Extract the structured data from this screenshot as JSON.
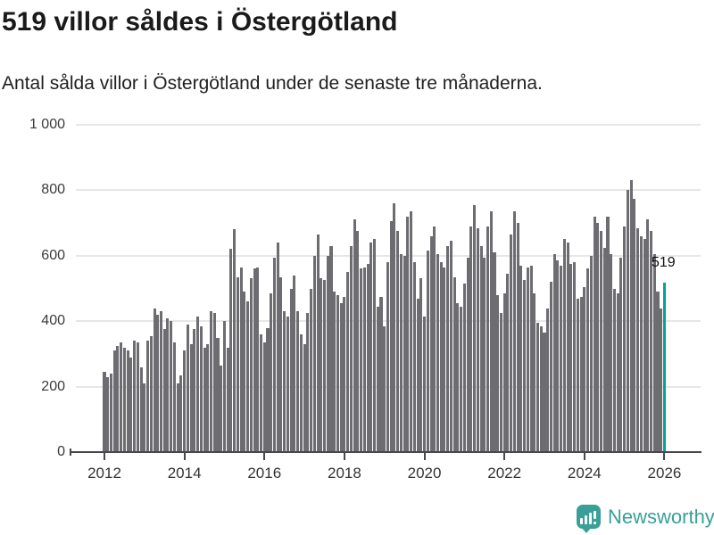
{
  "header": {
    "title": "519 villor såldes i Östergötland",
    "subtitle": "Antal sålda villor i Östergötland under de senaste tre månaderna."
  },
  "chart_data": {
    "type": "bar",
    "title": "519 villor såldes i Östergötland",
    "subtitle": "Antal sålda villor i Östergötland under de senaste tre månaderna.",
    "x_start": "2012-01",
    "x_freq": "monthly",
    "values": [
      245,
      230,
      240,
      310,
      325,
      335,
      320,
      310,
      290,
      340,
      335,
      260,
      210,
      340,
      355,
      440,
      420,
      430,
      375,
      410,
      400,
      335,
      210,
      235,
      310,
      390,
      330,
      375,
      415,
      385,
      320,
      330,
      430,
      425,
      350,
      265,
      400,
      320,
      620,
      680,
      535,
      565,
      490,
      460,
      530,
      560,
      565,
      360,
      335,
      380,
      485,
      595,
      640,
      535,
      430,
      415,
      500,
      540,
      430,
      360,
      330,
      425,
      500,
      600,
      665,
      530,
      525,
      600,
      630,
      490,
      480,
      455,
      475,
      550,
      630,
      710,
      675,
      560,
      565,
      575,
      640,
      650,
      445,
      475,
      385,
      580,
      705,
      760,
      675,
      605,
      600,
      720,
      735,
      580,
      470,
      530,
      415,
      615,
      660,
      690,
      605,
      580,
      565,
      630,
      645,
      535,
      455,
      445,
      515,
      595,
      690,
      755,
      685,
      630,
      595,
      690,
      735,
      610,
      480,
      425,
      485,
      545,
      665,
      735,
      700,
      570,
      525,
      565,
      570,
      485,
      395,
      385,
      365,
      440,
      520,
      605,
      585,
      570,
      650,
      640,
      575,
      580,
      470,
      475,
      505,
      560,
      600,
      720,
      700,
      675,
      625,
      720,
      605,
      500,
      485,
      595,
      690,
      800,
      830,
      775,
      685,
      660,
      650,
      710,
      675,
      605,
      490,
      440,
      519
    ],
    "highlight_last_bar": true,
    "annotation": {
      "text": "519"
    },
    "ylim": [
      0,
      1000
    ],
    "yticks": [
      0,
      200,
      400,
      600,
      800,
      1000
    ],
    "ytick_labels": [
      "0",
      "200",
      "400",
      "600",
      "800",
      "1 000"
    ],
    "xtick_years": [
      "2012",
      "2014",
      "2016",
      "2018",
      "2020",
      "2022",
      "2024",
      "2026"
    ],
    "grid": "horizontal",
    "legend": "none",
    "colors": {
      "bar": "#6c6c71",
      "highlight": "#00a49b",
      "gridline": "#e7e7e7",
      "axis": "#47474c",
      "brand_teal": "#3a9e99"
    }
  },
  "footer": {
    "brand": "Newsworthy",
    "logo_icon": "bar-chart-speech-bubble"
  }
}
